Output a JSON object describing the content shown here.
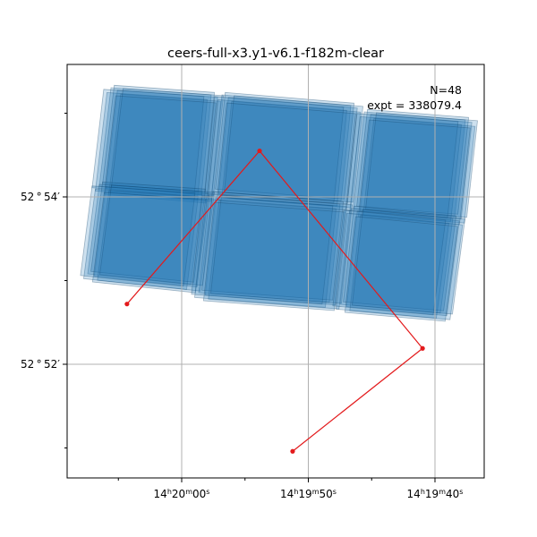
{
  "chart_data": {
    "type": "scatter",
    "title": "ceers-full-x3.y1-v6.1-f182m-clear",
    "annotation": {
      "n_label": "N=48",
      "expt_label": "expt = 338079.4"
    },
    "xlabel": "",
    "ylabel": "",
    "x_axis_inverted": true,
    "grid": true,
    "x_ticks": [
      {
        "value": 1203.0,
        "label_html": "14<tspan baseline-shift='super' font-size='8px'>h</tspan>20<tspan baseline-shift='super' font-size='8px'>m</tspan>00<tspan baseline-shift='super' font-size='8px'>s</tspan>"
      },
      {
        "value": 1193.0,
        "label_html": "14<tspan baseline-shift='super' font-size='8px'>h</tspan>19<tspan baseline-shift='super' font-size='8px'>m</tspan>50<tspan baseline-shift='super' font-size='8px'>s</tspan>"
      },
      {
        "value": 1183.0,
        "label_html": "14<tspan baseline-shift='super' font-size='8px'>h</tspan>19<tspan baseline-shift='super' font-size='8px'>m</tspan>40<tspan baseline-shift='super' font-size='8px'>s</tspan>"
      }
    ],
    "x_ticks_labels": [
      "14h20m00s",
      "14h19m50s",
      "14h19m40s"
    ],
    "y_ticks": [
      {
        "value": 54,
        "label": "52°54′"
      },
      {
        "value": 52,
        "label": "52°52′"
      }
    ],
    "y_ticks_labels": [
      "52 ° 54′",
      "52 ° 52′"
    ],
    "track_series": {
      "color": "#e31a1c",
      "points_ra_sec": [
        1207.32,
        1196.85,
        1183.98,
        1194.24
      ],
      "points_dec_arcmin": [
        52.72,
        54.55,
        52.19,
        50.96
      ]
    },
    "footprint_color": "#1f77b4",
    "footprint_opacity": 0.4,
    "footprint_grid": {
      "columns": 3,
      "rows": 2,
      "exposures": 48
    }
  }
}
